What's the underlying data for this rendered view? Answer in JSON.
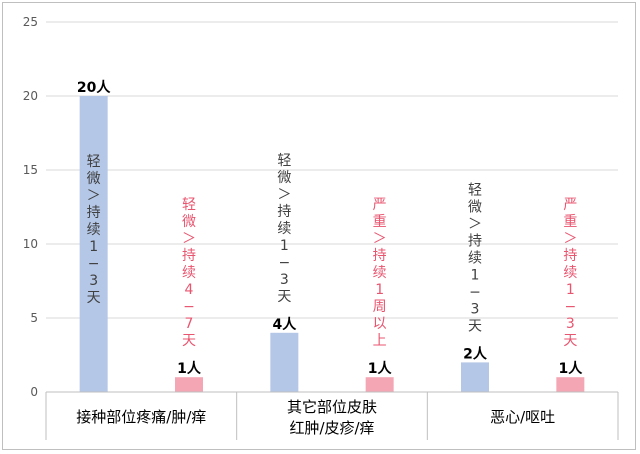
{
  "chart_data": {
    "type": "bar",
    "ylim": [
      0,
      25
    ],
    "yticks": [
      0,
      5,
      10,
      15,
      20,
      25
    ],
    "grid": true,
    "groups": [
      {
        "label_lines": [
          "接种部位疼痛/肿/痒"
        ]
      },
      {
        "label_lines": [
          "其它部位皮肤",
          "红肿/皮疹/痒"
        ]
      },
      {
        "label_lines": [
          "恶心/呕吐"
        ]
      }
    ],
    "bars": [
      {
        "group": 0,
        "value": 20,
        "label": "20人",
        "note": "轻微＞持续1−3天",
        "color": "#b4c7e7",
        "note_color": "#404040"
      },
      {
        "group": 0,
        "value": 1,
        "label": "1人",
        "note": "轻微＞持续4−7天",
        "color": "#f4a6b4",
        "note_color": "#e8556f"
      },
      {
        "group": 1,
        "value": 4,
        "label": "4人",
        "note": "轻微＞持续1−3天",
        "color": "#b4c7e7",
        "note_color": "#404040"
      },
      {
        "group": 1,
        "value": 1,
        "label": "1人",
        "note": "严重＞持续1周以上",
        "color": "#f4a6b4",
        "note_color": "#e8556f"
      },
      {
        "group": 2,
        "value": 2,
        "label": "2人",
        "note": "轻微＞持续1−3天",
        "color": "#b4c7e7",
        "note_color": "#404040"
      },
      {
        "group": 2,
        "value": 1,
        "label": "1人",
        "note": "严重＞持续1−3天",
        "color": "#f4a6b4",
        "note_color": "#e8556f"
      }
    ]
  }
}
